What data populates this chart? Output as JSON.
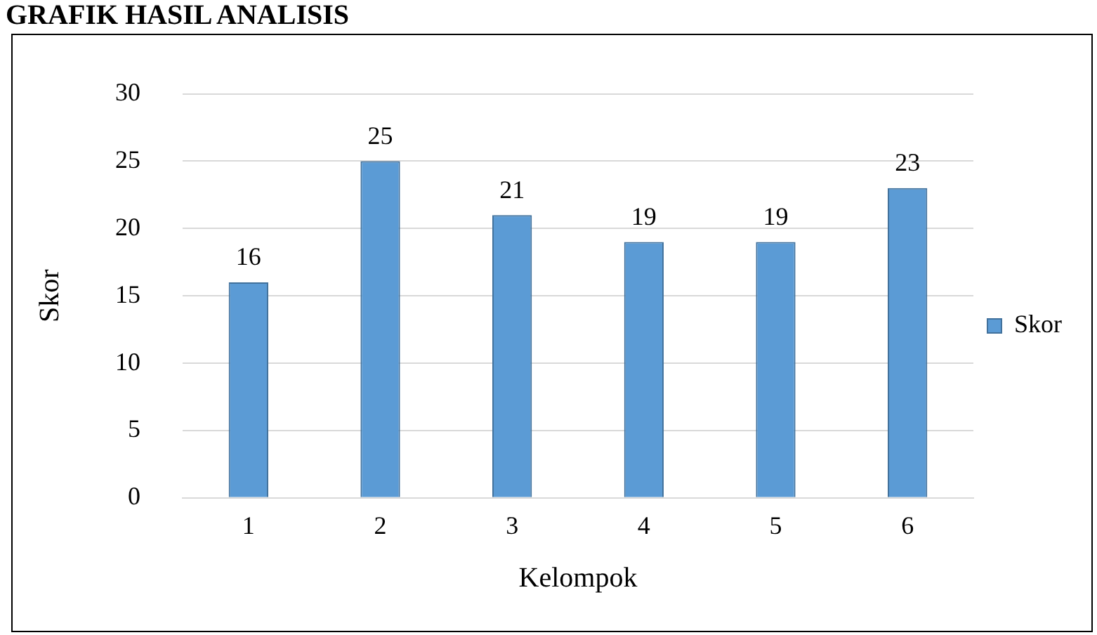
{
  "chart_data": {
    "type": "bar",
    "title": "GRAFIK HASIL ANALISIS",
    "xlabel": "Kelompok",
    "ylabel": "Skor",
    "categories": [
      "1",
      "2",
      "3",
      "4",
      "5",
      "6"
    ],
    "series": [
      {
        "name": "Skor",
        "color": "#5b9bd5",
        "values": [
          16,
          25,
          21,
          19,
          19,
          23
        ]
      }
    ],
    "ylim": [
      0,
      30
    ],
    "yticks": [
      0,
      5,
      10,
      15,
      20,
      25,
      30
    ],
    "grid": "y",
    "legend": "right",
    "data_labels": true
  }
}
